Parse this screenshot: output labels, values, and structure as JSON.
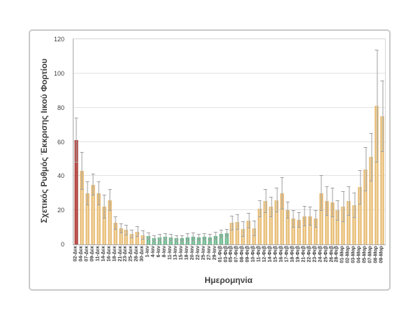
{
  "figure": {
    "background": "#FFFFFF",
    "border_color": "#C9C9C9"
  },
  "chart_data": {
    "type": "bar",
    "title": "",
    "xlabel": "Ημερομηνία",
    "ylabel": "Σχετικός Ρυθμός Έκκρισης Ιικού Φορτίου",
    "ylim": [
      0,
      120
    ],
    "yticks": [
      0,
      20,
      40,
      60,
      80,
      100,
      120
    ],
    "grid": true,
    "legend": "none",
    "error_bars": "symmetric",
    "palette": {
      "red": {
        "edge": "#9E2B28",
        "center": "#C4625C"
      },
      "orange": {
        "edge": "#DD9B39",
        "center": "#F5E4BC"
      },
      "green": {
        "edge": "#35985F",
        "center": "#A8D9BF"
      },
      "error": "#9E9E9E",
      "grid": "#E2E2E2",
      "axis": "#A6A6A6",
      "text": "#3F3F3F"
    },
    "bars": [
      {
        "label": "02-Δεκ",
        "value": 61,
        "err": 13,
        "color": "red"
      },
      {
        "label": "04-Δεκ",
        "value": 43,
        "err": 11,
        "color": "orange"
      },
      {
        "label": "07-Δεκ",
        "value": 30,
        "err": 7,
        "color": "orange"
      },
      {
        "label": "09-Δεκ",
        "value": 35,
        "err": 6.5,
        "color": "orange"
      },
      {
        "label": "11-Δεκ",
        "value": 30,
        "err": 7,
        "color": "orange"
      },
      {
        "label": "14-Δεκ",
        "value": 22,
        "err": 7,
        "color": "orange"
      },
      {
        "label": "16-Δεκ",
        "value": 26,
        "err": 6.5,
        "color": "orange"
      },
      {
        "label": "18-Δεκ",
        "value": 12.5,
        "err": 4,
        "color": "orange"
      },
      {
        "label": "21-Δεκ",
        "value": 9.5,
        "err": 3,
        "color": "orange"
      },
      {
        "label": "23-Δεκ",
        "value": 8.5,
        "err": 3,
        "color": "orange"
      },
      {
        "label": "25-Δεκ",
        "value": 6,
        "err": 2.5,
        "color": "orange"
      },
      {
        "label": "28-Δεκ",
        "value": 7.5,
        "err": 3,
        "color": "orange"
      },
      {
        "label": "30-Δεκ",
        "value": 5.5,
        "err": 2.5,
        "color": "orange"
      },
      {
        "label": "1-Ιαν",
        "value": 5,
        "err": 2,
        "color": "green"
      },
      {
        "label": "4-Ιαν",
        "value": 3.5,
        "err": 2,
        "color": "green"
      },
      {
        "label": "6-Ιαν",
        "value": 4,
        "err": 2,
        "color": "green"
      },
      {
        "label": "8-Ιαν",
        "value": 4.5,
        "err": 2,
        "color": "green"
      },
      {
        "label": "11-Ιαν",
        "value": 4,
        "err": 2,
        "color": "green"
      },
      {
        "label": "13-Ιαν",
        "value": 3.5,
        "err": 2,
        "color": "green"
      },
      {
        "label": "15-Ιαν",
        "value": 3.5,
        "err": 2,
        "color": "green"
      },
      {
        "label": "18-Ιαν",
        "value": 4,
        "err": 2.5,
        "color": "green"
      },
      {
        "label": "20-Ιαν",
        "value": 4.5,
        "err": 2.5,
        "color": "green"
      },
      {
        "label": "22-Ιαν",
        "value": 4,
        "err": 2,
        "color": "green"
      },
      {
        "label": "25-Ιαν",
        "value": 4.5,
        "err": 2,
        "color": "green"
      },
      {
        "label": "27-Ιαν",
        "value": 4,
        "err": 2,
        "color": "green"
      },
      {
        "label": "29-Ιαν",
        "value": 5,
        "err": 2.5,
        "color": "green"
      },
      {
        "label": "01-Φεβ",
        "value": 6,
        "err": 2.5,
        "color": "green"
      },
      {
        "label": "03-Φεβ",
        "value": 6.5,
        "err": 2.5,
        "color": "green"
      },
      {
        "label": "05-Φεβ",
        "value": 12.5,
        "err": 4.5,
        "color": "orange"
      },
      {
        "label": "07-Φεβ",
        "value": 13,
        "err": 4.5,
        "color": "orange"
      },
      {
        "label": "08-Φεβ",
        "value": 9,
        "err": 4.5,
        "color": "orange"
      },
      {
        "label": "09-Φεβ",
        "value": 14,
        "err": 4.5,
        "color": "orange"
      },
      {
        "label": "10-Φεβ",
        "value": 9.5,
        "err": 4.5,
        "color": "orange"
      },
      {
        "label": "11-Φεβ",
        "value": 21,
        "err": 5,
        "color": "orange"
      },
      {
        "label": "12-Φεβ",
        "value": 25.5,
        "err": 7,
        "color": "orange"
      },
      {
        "label": "14-Φεβ",
        "value": 22,
        "err": 6,
        "color": "orange"
      },
      {
        "label": "15-Φεβ",
        "value": 26,
        "err": 7,
        "color": "orange"
      },
      {
        "label": "16-Φεβ",
        "value": 30,
        "err": 9.5,
        "color": "orange"
      },
      {
        "label": "17-Φεβ",
        "value": 20,
        "err": 5,
        "color": "orange"
      },
      {
        "label": "18-Φεβ",
        "value": 15,
        "err": 5,
        "color": "orange"
      },
      {
        "label": "19-Φεβ",
        "value": 14.5,
        "err": 4.5,
        "color": "orange"
      },
      {
        "label": "21-Φεβ",
        "value": 16.5,
        "err": 6,
        "color": "orange"
      },
      {
        "label": "22-Φεβ",
        "value": 16.5,
        "err": 5.5,
        "color": "orange"
      },
      {
        "label": "23-Φεβ",
        "value": 15,
        "err": 5,
        "color": "orange"
      },
      {
        "label": "24-Φεβ",
        "value": 30,
        "err": 10.5,
        "color": "orange"
      },
      {
        "label": "25-Φεβ",
        "value": 25.5,
        "err": 8.5,
        "color": "orange"
      },
      {
        "label": "26-Φεβ",
        "value": 24.5,
        "err": 8.5,
        "color": "orange"
      },
      {
        "label": "28-Φεβ",
        "value": 20,
        "err": 6,
        "color": "orange"
      },
      {
        "label": "01-Μαρ",
        "value": 22,
        "err": 9,
        "color": "orange"
      },
      {
        "label": "02-Μαρ",
        "value": 25.5,
        "err": 8.5,
        "color": "orange"
      },
      {
        "label": "03-Μαρ",
        "value": 23,
        "err": 7.5,
        "color": "orange"
      },
      {
        "label": "04-Μαρ",
        "value": 33.5,
        "err": 10,
        "color": "orange"
      },
      {
        "label": "05-Μαρ",
        "value": 44,
        "err": 13,
        "color": "orange"
      },
      {
        "label": "07-Μαρ",
        "value": 51,
        "err": 14,
        "color": "orange"
      },
      {
        "label": "08-Μαρ",
        "value": 81,
        "err": 33,
        "color": "orange"
      },
      {
        "label": "09-Μαρ",
        "value": 75,
        "err": 21,
        "color": "orange"
      }
    ]
  }
}
